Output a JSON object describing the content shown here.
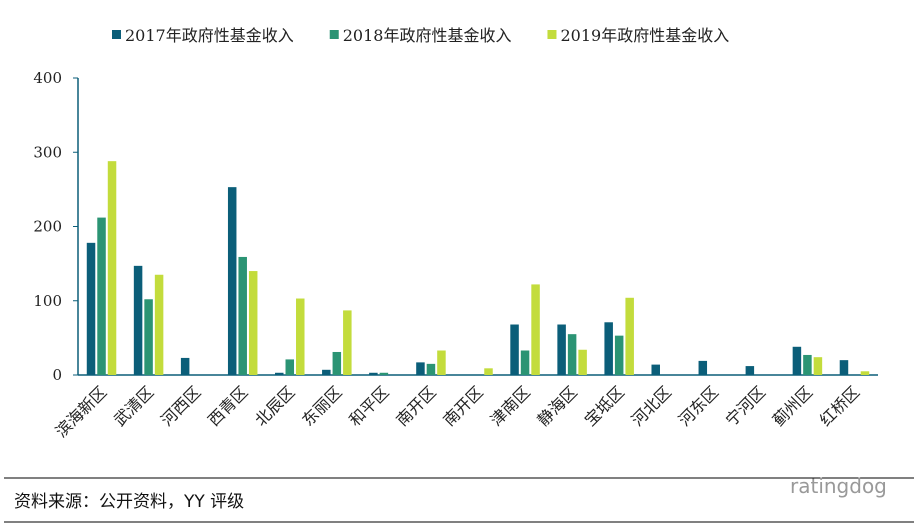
{
  "chart_data": {
    "type": "bar",
    "categories": [
      "滨海新区",
      "武清区",
      "河西区",
      "西青区",
      "北辰区",
      "东丽区",
      "和平区",
      "南开区",
      "南开区",
      "津南区",
      "静海区",
      "宝坻区",
      "河北区",
      "河东区",
      "宁河区",
      "蓟州区",
      "红桥区"
    ],
    "series": [
      {
        "name": "2017年政府性基金收入",
        "color": "#0b5e79",
        "values": [
          178,
          147,
          23,
          253,
          3,
          7,
          3,
          17,
          null,
          68,
          68,
          71,
          14,
          19,
          12,
          38,
          20
        ]
      },
      {
        "name": "2018年政府性基金收入",
        "color": "#2b9474",
        "values": [
          212,
          102,
          null,
          159,
          21,
          31,
          3,
          15,
          null,
          33,
          55,
          53,
          null,
          null,
          null,
          27,
          null
        ]
      },
      {
        "name": "2019年政府性基金收入",
        "color": "#c3dc3c",
        "values": [
          288,
          135,
          null,
          140,
          103,
          87,
          null,
          33,
          9,
          122,
          34,
          104,
          null,
          null,
          null,
          24,
          5
        ]
      }
    ],
    "ylim": [
      0,
      400
    ],
    "yticks": [
      0,
      100,
      200,
      300,
      400
    ],
    "grid": false
  },
  "footer": {
    "source": "资料来源：公开资料，YY 评级",
    "watermark": "ratingdog"
  }
}
